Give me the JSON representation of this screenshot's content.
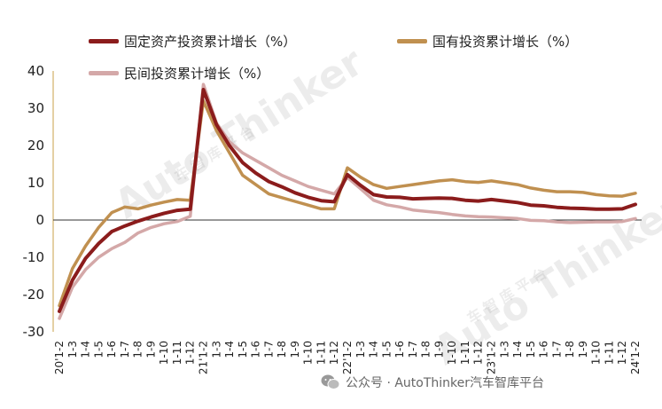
{
  "chart_data": {
    "type": "line",
    "categories": [
      "20'1-2",
      "1-3",
      "1-4",
      "1-5",
      "1-6",
      "1-7",
      "1-8",
      "1-9",
      "1-10",
      "1-11",
      "1-12",
      "21'1-2",
      "1-3",
      "1-4",
      "1-5",
      "1-6",
      "1-7",
      "1-8",
      "1-9",
      "1-10",
      "1-11",
      "1-12",
      "22'1-2",
      "1-3",
      "1-4",
      "1-5",
      "1-6",
      "1-7",
      "1-8",
      "1-9",
      "1-10",
      "1-11",
      "1-12",
      "23'1-2",
      "1-3",
      "1-4",
      "1-5",
      "1-6",
      "1-7",
      "1-8",
      "1-9",
      "1-10",
      "1-11",
      "1-12",
      "24'1-2"
    ],
    "series": [
      {
        "name": "固定资产投资累计增长（%）",
        "color": "#8b1c1c",
        "values": [
          -24.5,
          -16.1,
          -10.3,
          -6.3,
          -3.1,
          -1.6,
          -0.3,
          0.8,
          1.8,
          2.6,
          2.9,
          35.0,
          25.6,
          19.9,
          15.4,
          12.6,
          10.3,
          8.9,
          7.3,
          6.1,
          5.2,
          4.9,
          12.2,
          9.3,
          6.8,
          6.2,
          6.1,
          5.7,
          5.8,
          5.9,
          5.8,
          5.3,
          5.1,
          5.5,
          5.1,
          4.7,
          4.0,
          3.8,
          3.4,
          3.2,
          3.1,
          2.9,
          2.9,
          3.0,
          4.2
        ]
      },
      {
        "name": "国有投资累计增长（%）",
        "color": "#c09050",
        "values": [
          -23.0,
          -13.0,
          -7.0,
          -2.0,
          2.0,
          3.5,
          3.0,
          4.0,
          4.8,
          5.5,
          5.3,
          32.0,
          24.0,
          18.0,
          12.0,
          9.5,
          7.0,
          6.0,
          5.0,
          4.0,
          3.0,
          3.0,
          14.0,
          11.5,
          9.5,
          8.5,
          9.0,
          9.5,
          10.0,
          10.5,
          10.8,
          10.3,
          10.1,
          10.5,
          10.0,
          9.5,
          8.6,
          8.0,
          7.6,
          7.6,
          7.4,
          6.8,
          6.5,
          6.4,
          7.2
        ]
      },
      {
        "name": "民间投资累计增长（%）",
        "color": "#d4a8a8",
        "values": [
          -26.4,
          -18.0,
          -13.3,
          -10.0,
          -7.7,
          -6.0,
          -3.5,
          -2.0,
          -1.0,
          -0.4,
          1.0,
          36.4,
          26.0,
          21.0,
          18.0,
          16.0,
          14.0,
          12.0,
          10.5,
          9.0,
          8.0,
          7.0,
          11.4,
          8.4,
          5.3,
          4.1,
          3.5,
          2.7,
          2.3,
          2.0,
          1.5,
          1.1,
          0.9,
          0.8,
          0.6,
          0.4,
          -0.1,
          -0.2,
          -0.5,
          -0.7,
          -0.6,
          -0.5,
          -0.5,
          -0.4,
          0.4
        ]
      }
    ],
    "yticks": [
      -30,
      -20,
      -10,
      0,
      10,
      20,
      30,
      40
    ],
    "ylim": [
      -30,
      40
    ],
    "xlabel": "",
    "ylabel": "",
    "title": "",
    "legend_placement": "top",
    "grid": false
  },
  "watermark": {
    "brand": "Auto Thinker",
    "sub": "车 智 库 平 台"
  },
  "footer": {
    "text": "公众号 · AutoThinker汽车智库平台"
  }
}
